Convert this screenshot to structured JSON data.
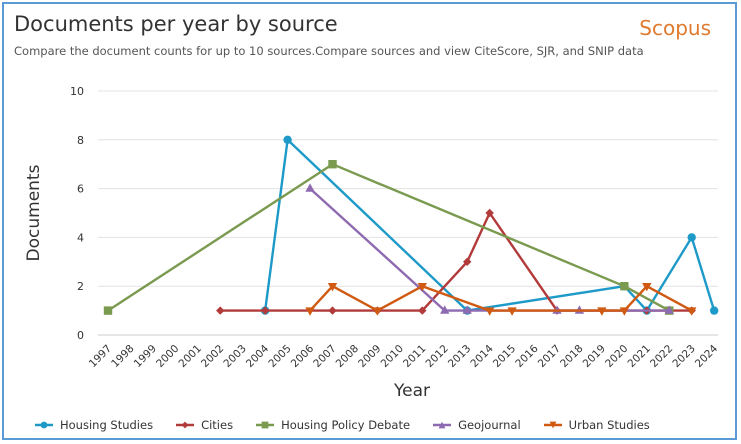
{
  "header": {
    "title": "Documents per year by source",
    "subtitle": "Compare the document counts for up to 10 sources.Compare sources and view CiteScore, SJR, and SNIP data",
    "brand": "Scopus"
  },
  "chart_data": {
    "type": "line",
    "xlabel": "Year",
    "ylabel": "Documents",
    "ylim": [
      0,
      10
    ],
    "yticks": [
      "0",
      "2",
      "4",
      "6",
      "8",
      "10"
    ],
    "categories": [
      "1997",
      "1998",
      "1999",
      "2000",
      "2001",
      "2002",
      "2003",
      "2004",
      "2005",
      "2006",
      "2007",
      "2008",
      "2009",
      "2010",
      "2011",
      "2012",
      "2013",
      "2014",
      "2015",
      "2016",
      "2017",
      "2018",
      "2019",
      "2020",
      "2021",
      "2022",
      "2023",
      "2024"
    ],
    "grid": true,
    "legend": "bottom",
    "series": [
      {
        "name": "Housing Studies",
        "color": "#1e9ac9",
        "marker": "circle",
        "points": [
          [
            2004,
            1
          ],
          [
            2005,
            8
          ],
          [
            2013,
            1
          ],
          [
            2020,
            2
          ],
          [
            2021,
            1
          ],
          [
            2023,
            4
          ],
          [
            2024,
            1
          ]
        ]
      },
      {
        "name": "Cities",
        "color": "#b23a3a",
        "marker": "diamond",
        "points": [
          [
            2002,
            1
          ],
          [
            2004,
            1
          ],
          [
            2007,
            1
          ],
          [
            2009,
            1
          ],
          [
            2011,
            1
          ],
          [
            2013,
            3
          ],
          [
            2014,
            5
          ],
          [
            2017,
            1
          ],
          [
            2021,
            1
          ],
          [
            2023,
            1
          ]
        ]
      },
      {
        "name": "Housing Policy Debate",
        "color": "#7a9a4f",
        "marker": "square",
        "points": [
          [
            1997,
            1
          ],
          [
            2007,
            7
          ],
          [
            2020,
            2
          ],
          [
            2022,
            1
          ]
        ]
      },
      {
        "name": "Geojournal",
        "color": "#8e6bb0",
        "marker": "triangle-up",
        "points": [
          [
            2006,
            6
          ],
          [
            2012,
            1
          ],
          [
            2013,
            1
          ],
          [
            2017,
            1
          ],
          [
            2018,
            1
          ],
          [
            2022,
            1
          ]
        ]
      },
      {
        "name": "Urban Studies",
        "color": "#d05a12",
        "marker": "triangle-down",
        "points": [
          [
            2006,
            1
          ],
          [
            2007,
            2
          ],
          [
            2009,
            1
          ],
          [
            2011,
            2
          ],
          [
            2014,
            1
          ],
          [
            2015,
            1
          ],
          [
            2019,
            1
          ],
          [
            2020,
            1
          ],
          [
            2021,
            2
          ],
          [
            2023,
            1
          ]
        ]
      }
    ]
  }
}
